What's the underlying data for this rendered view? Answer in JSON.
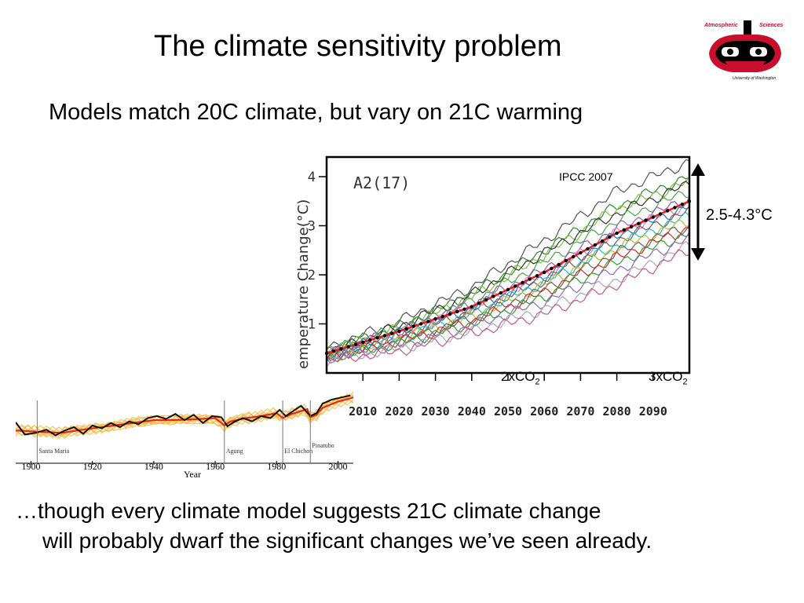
{
  "slide": {
    "title": "The climate sensitivity problem",
    "subtitle": "Models match 20C climate, but vary on 21C warming",
    "range_label": "2.5-4.3°C",
    "caption_line1": "…though every climate model suggests 21C climate change",
    "caption_line2": "will probably dwarf the significant changes we’ve seen already."
  },
  "logo": {
    "text_left": "Atmospheric",
    "text_right": "Sciences",
    "text_bottom": "University of Washington"
  },
  "colors": {
    "observed": "#111111",
    "model_mean": "#e8201a",
    "ensemble": "#f5b73c",
    "arrow": "#000000",
    "logo_red": "#c8102e"
  },
  "chart_data": [
    {
      "type": "line",
      "xlabel": "Year",
      "ylabel": "",
      "xlim": [
        1895,
        2005
      ],
      "x_ticks": [
        "1900",
        "1920",
        "1940",
        "1960",
        "1980",
        "2000"
      ],
      "x_tick_values": [
        1900,
        1920,
        1940,
        1960,
        1980,
        2000
      ],
      "ylim": [
        -1.0,
        1.0
      ],
      "annotations": [
        {
          "label": "Santa Maria",
          "year": 1902
        },
        {
          "label": "Agung",
          "year": 1963
        },
        {
          "label": "El Chichon",
          "year": 1982
        },
        {
          "label": "Pinatubo",
          "year": 1991
        }
      ],
      "series": [
        {
          "x": [
            1895,
            1900,
            1905,
            1910,
            1915,
            1920,
            1925,
            1930,
            1935,
            1940,
            1945,
            1950,
            1955,
            1960,
            1963,
            1965,
            1970,
            1975,
            1980,
            1982,
            1985,
            1990,
            1991,
            1993,
            1995,
            2000,
            2005
          ],
          "values": [
            -0.3,
            -0.32,
            -0.34,
            -0.36,
            -0.3,
            -0.25,
            -0.2,
            -0.15,
            -0.1,
            -0.05,
            -0.05,
            -0.04,
            -0.02,
            0.0,
            -0.18,
            -0.08,
            0.0,
            0.05,
            0.12,
            0.0,
            0.1,
            0.22,
            0.02,
            0.08,
            0.25,
            0.4,
            0.5
          ]
        },
        {
          "x": [
            1895,
            1898,
            1902,
            1905,
            1908,
            1911,
            1914,
            1917,
            1920,
            1923,
            1926,
            1929,
            1932,
            1935,
            1938,
            1941,
            1944,
            1947,
            1950,
            1953,
            1956,
            1959,
            1962,
            1964,
            1966,
            1969,
            1972,
            1975,
            1978,
            1981,
            1983,
            1985,
            1988,
            1991,
            1993,
            1995,
            1998,
            2001,
            2004
          ],
          "values": [
            -0.1,
            -0.4,
            -0.35,
            -0.28,
            -0.42,
            -0.3,
            -0.22,
            -0.38,
            -0.18,
            -0.25,
            -0.12,
            -0.22,
            -0.08,
            -0.15,
            0.0,
            0.05,
            -0.02,
            0.1,
            -0.05,
            0.08,
            -0.12,
            0.05,
            0.02,
            -0.2,
            -0.1,
            0.0,
            -0.08,
            0.05,
            0.0,
            0.2,
            0.05,
            0.15,
            0.3,
            0.05,
            0.12,
            0.35,
            0.45,
            0.5,
            0.55
          ]
        }
      ]
    },
    {
      "type": "line",
      "title": "A2(17)",
      "source": "IPCC 2007",
      "ylabel": "emperature Change(°C)",
      "xlabel": "",
      "xlim": [
        2000,
        2100
      ],
      "ylim": [
        0,
        4.4
      ],
      "x_ticks": [
        "2010",
        "2020",
        "2030",
        "2040",
        "2050",
        "2060",
        "2070",
        "2080",
        "2090"
      ],
      "x_tick_values": [
        2010,
        2020,
        2030,
        2040,
        2050,
        2060,
        2070,
        2080,
        2090
      ],
      "y_ticks": [
        "1",
        "2",
        "3",
        "4"
      ],
      "y_tick_values": [
        1,
        2,
        3,
        4
      ],
      "labels": [
        {
          "text": "2xCO",
          "sub": "2"
        },
        {
          "text": "3xCO",
          "sub": "2"
        }
      ],
      "x": [
        2000,
        2020,
        2040,
        2060,
        2080,
        2100
      ],
      "mean": [
        0.4,
        0.85,
        1.35,
        2.05,
        2.85,
        3.5
      ],
      "ensemble_end_range": [
        2.5,
        4.3
      ],
      "series": [
        {
          "values": [
            0.5,
            1.05,
            1.75,
            2.7,
            3.7,
            4.3
          ]
        },
        {
          "values": [
            0.45,
            0.95,
            1.6,
            2.5,
            3.4,
            4.0
          ]
        },
        {
          "values": [
            0.45,
            0.9,
            1.55,
            2.4,
            3.35,
            3.9
          ]
        },
        {
          "values": [
            0.4,
            0.95,
            1.6,
            2.45,
            3.25,
            3.85
          ]
        },
        {
          "values": [
            0.45,
            0.9,
            1.45,
            2.25,
            3.1,
            3.7
          ]
        },
        {
          "values": [
            0.4,
            0.85,
            1.4,
            2.1,
            2.95,
            3.55
          ]
        },
        {
          "values": [
            0.4,
            0.8,
            1.35,
            2.0,
            2.85,
            3.45
          ]
        },
        {
          "values": [
            0.35,
            0.8,
            1.3,
            1.95,
            2.8,
            3.4
          ]
        },
        {
          "values": [
            0.35,
            0.75,
            1.25,
            1.9,
            2.7,
            3.3
          ]
        },
        {
          "values": [
            0.35,
            0.7,
            1.2,
            1.85,
            2.6,
            3.2
          ]
        },
        {
          "values": [
            0.35,
            0.7,
            1.15,
            1.8,
            2.55,
            3.1
          ]
        },
        {
          "values": [
            0.3,
            0.65,
            1.1,
            1.7,
            2.45,
            3.0
          ]
        },
        {
          "values": [
            0.3,
            0.65,
            1.05,
            1.65,
            2.35,
            2.95
          ]
        },
        {
          "values": [
            0.3,
            0.6,
            1.0,
            1.55,
            2.25,
            2.85
          ]
        },
        {
          "values": [
            0.3,
            0.55,
            0.95,
            1.45,
            2.1,
            2.75
          ]
        },
        {
          "values": [
            0.25,
            0.5,
            0.85,
            1.3,
            1.9,
            2.6
          ]
        },
        {
          "values": [
            0.25,
            0.45,
            0.8,
            1.2,
            1.8,
            2.5
          ]
        }
      ]
    }
  ]
}
